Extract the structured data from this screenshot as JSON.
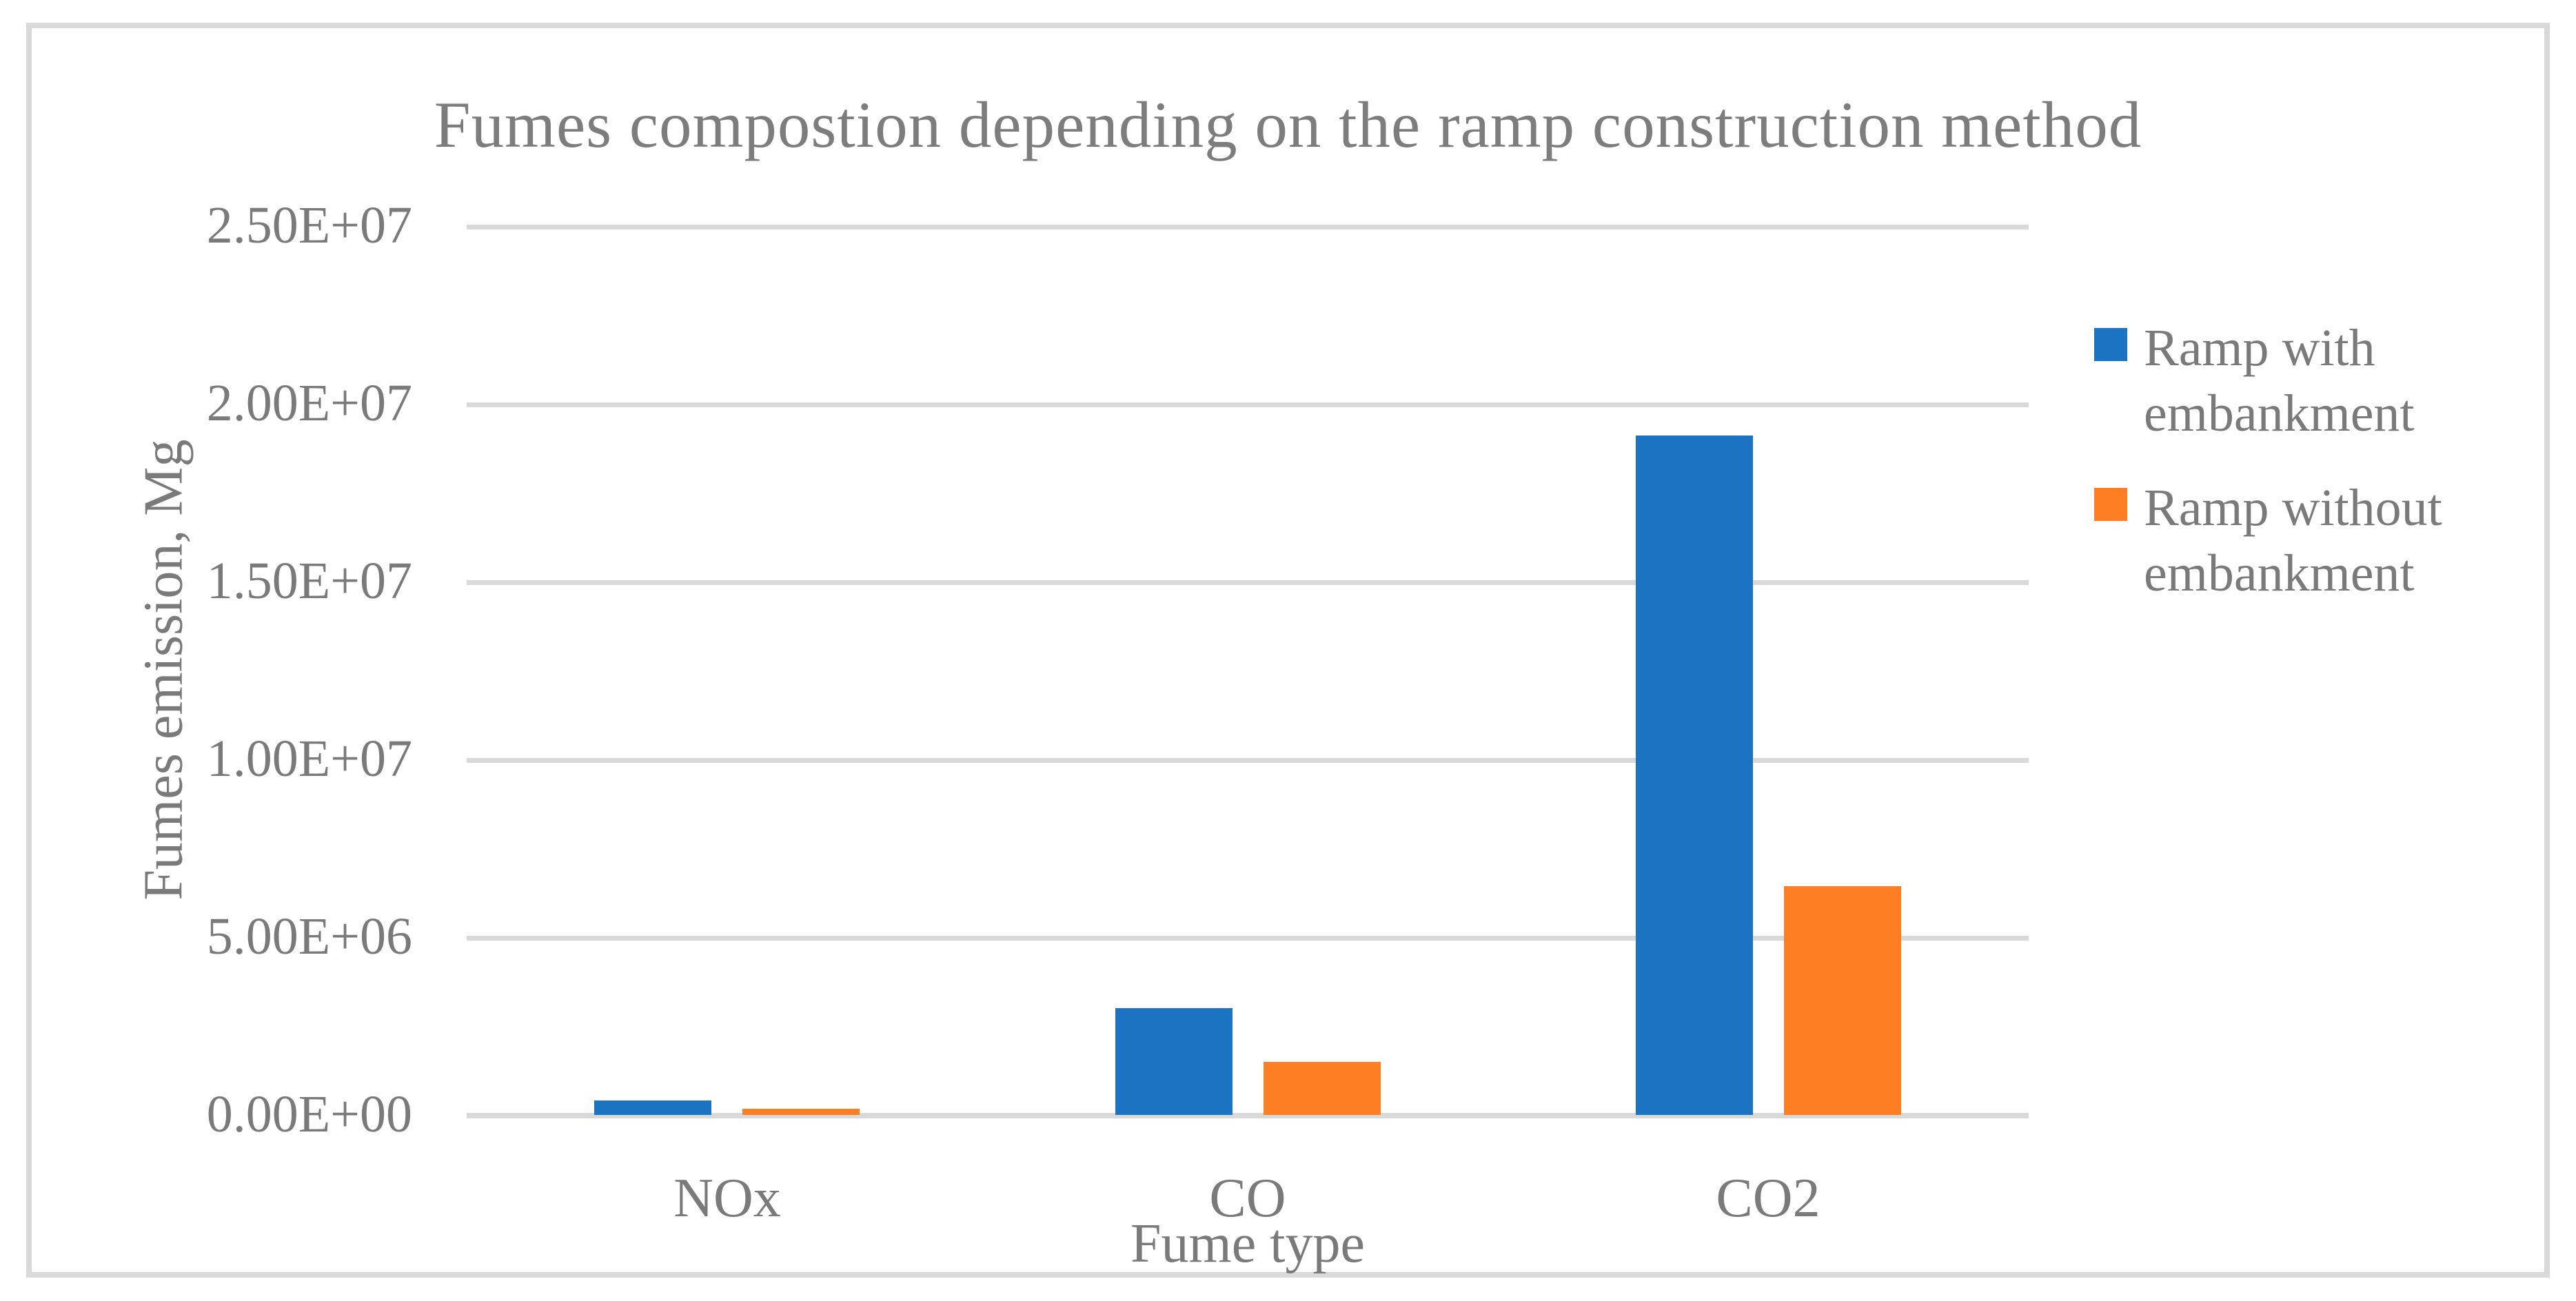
{
  "title": "Fumes compostion depending on the ramp construction method",
  "frame": {
    "border_color": "#D9D9D9"
  },
  "text_color": "#7A7A7A",
  "title_color": "#7D7D7D",
  "chart_data": {
    "type": "bar",
    "title": "Fumes compostion depending on the ramp construction method",
    "categories": [
      "NOx",
      "CO",
      "CO2"
    ],
    "series": [
      {
        "name": "Ramp with embankment",
        "color": "#1B73C1",
        "values": [
          405000,
          3000000,
          19100000
        ]
      },
      {
        "name": "Ramp without embankment",
        "color": "#FD7E23",
        "values": [
          170000,
          1500000,
          6440000
        ]
      }
    ],
    "xlabel": "Fume type",
    "ylabel": "Fumes emission, Mg",
    "ylim": [
      0,
      25000000
    ],
    "yticks": [
      {
        "value": 0,
        "label": "0.00E+00"
      },
      {
        "value": 5000000,
        "label": "5.00E+06"
      },
      {
        "value": 10000000,
        "label": "1.00E+07"
      },
      {
        "value": 15000000,
        "label": "1.50E+07"
      },
      {
        "value": 20000000,
        "label": "2.00E+07"
      },
      {
        "value": 25000000,
        "label": "2.50E+07"
      }
    ],
    "grid": "horizontal",
    "gridline_color": "#D9D9D9",
    "legend_position": "right"
  },
  "legend": {
    "items": [
      {
        "color": "#1B73C1",
        "lines": [
          "Ramp with",
          "embankment"
        ]
      },
      {
        "color": "#FD7E23",
        "lines": [
          "Ramp without",
          "embankment"
        ]
      }
    ]
  }
}
